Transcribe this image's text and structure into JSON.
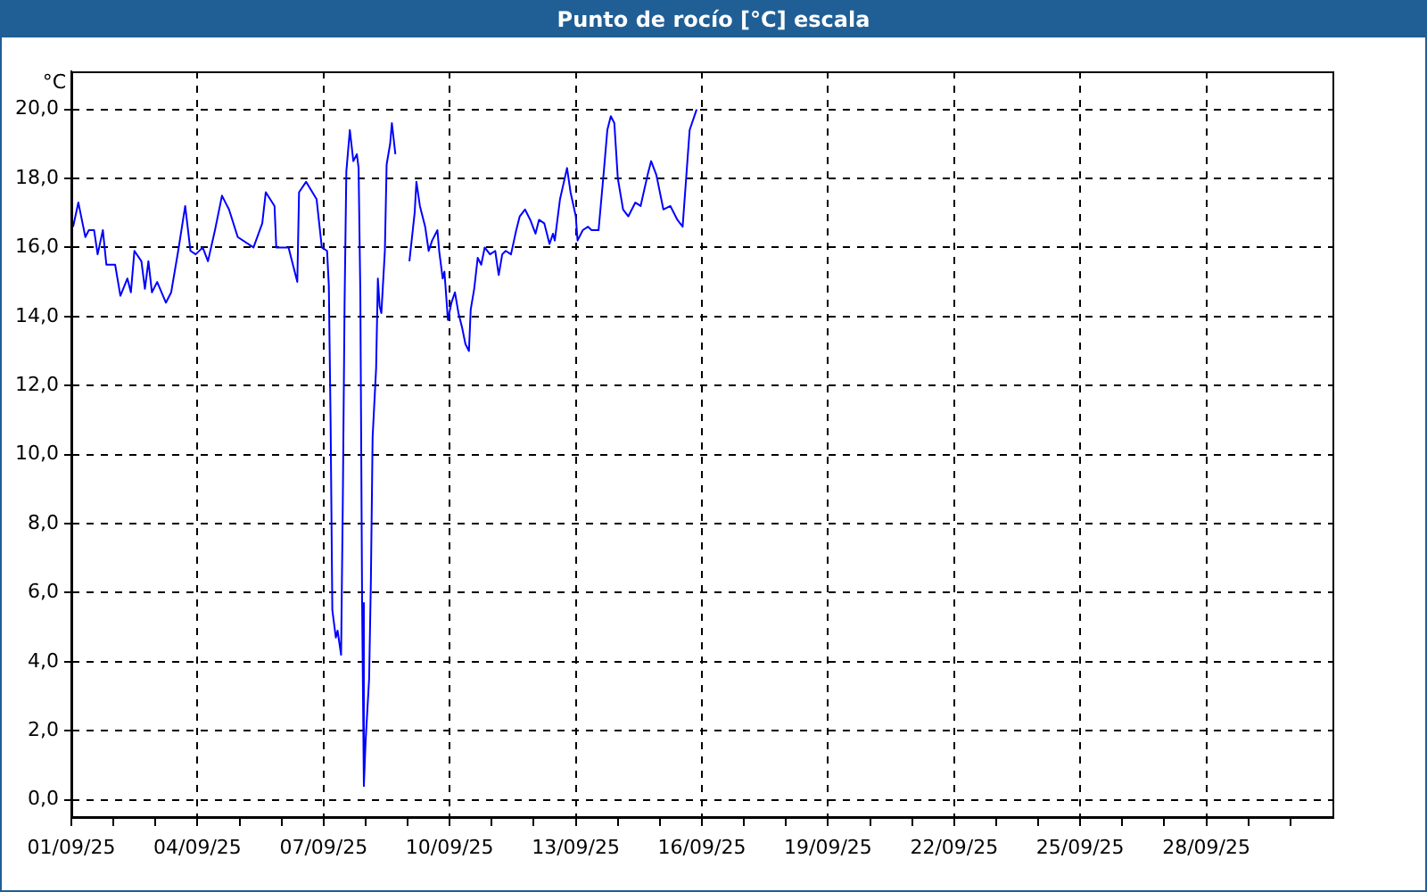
{
  "chart_data": {
    "type": "line",
    "title": "Punto de rocío [°C] escala",
    "ylabel": "°C",
    "xlim": [
      "--09-01",
      "--10-01"
    ],
    "xticks": [
      {
        "value": "--09-01",
        "label": "01/09/25"
      },
      {
        "value": "--09-02",
        "label": null
      },
      {
        "value": "--09-03",
        "label": null
      },
      {
        "value": "--09-04",
        "label": "04/09/25"
      },
      {
        "value": "--09-05",
        "label": null
      },
      {
        "value": "--09-06",
        "label": null
      },
      {
        "value": "--09-07",
        "label": "07/09/25"
      },
      {
        "value": "--09-08",
        "label": null
      },
      {
        "value": "--09-09",
        "label": null
      },
      {
        "value": "--09-10",
        "label": "10/09/25"
      },
      {
        "value": "--09-11",
        "label": null
      },
      {
        "value": "--09-12",
        "label": null
      },
      {
        "value": "--09-13",
        "label": "13/09/25"
      },
      {
        "value": "--09-14",
        "label": null
      },
      {
        "value": "--09-15",
        "label": null
      },
      {
        "value": "--09-16",
        "label": "16/09/25"
      },
      {
        "value": "--09-17",
        "label": null
      },
      {
        "value": "--09-18",
        "label": null
      },
      {
        "value": "--09-19",
        "label": "19/09/25"
      },
      {
        "value": "--09-20",
        "label": null
      },
      {
        "value": "--09-21",
        "label": null
      },
      {
        "value": "--09-22",
        "label": "22/09/25"
      },
      {
        "value": "--09-23",
        "label": null
      },
      {
        "value": "--09-24",
        "label": null
      },
      {
        "value": "--09-25",
        "label": "25/09/25"
      },
      {
        "value": "--09-26",
        "label": null
      },
      {
        "value": "--09-27",
        "label": null
      },
      {
        "value": "--09-28",
        "label": "28/09/25"
      },
      {
        "value": "--09-29",
        "label": null
      },
      {
        "value": "--09-30",
        "label": null
      }
    ],
    "ylim": [
      -0.5,
      21.1
    ],
    "yticks": [
      {
        "value": 0,
        "label": "0,0"
      },
      {
        "value": 2,
        "label": "2,0"
      },
      {
        "value": 4,
        "label": "4,0"
      },
      {
        "value": 6,
        "label": "6,0"
      },
      {
        "value": 8,
        "label": "8,0"
      },
      {
        "value": 10,
        "label": "10,0"
      },
      {
        "value": 12,
        "label": "12,0"
      },
      {
        "value": 14,
        "label": "14,0"
      },
      {
        "value": 16,
        "label": "16,0"
      },
      {
        "value": 18,
        "label": "18,0"
      },
      {
        "value": 20,
        "label": "20,0"
      }
    ],
    "grid": true,
    "legend": false,
    "marker": "none",
    "line_style": "solid",
    "x": [
      "--09-01T01:00",
      "--09-01T04:00",
      "--09-01T08:00",
      "--09-01T10:00",
      "--09-01T13:00",
      "--09-01T15:00",
      "--09-01T18:00",
      "--09-01T20:00",
      "--09-02T01:00",
      "--09-02T04:00",
      "--09-02T08:00",
      "--09-02T10:00",
      "--09-02T12:00",
      "--09-02T16:00",
      "--09-02T18:00",
      "--09-02T20:00",
      "--09-02T22:00",
      "--09-03T01:00",
      "--09-03T06:00",
      "--09-03T09:00",
      "--09-03T13:00",
      "--09-03T17:00",
      "--09-03T20:00",
      "--09-03T23:00",
      "--09-04T03:00",
      "--09-04T06:00",
      "--09-04T10:00",
      "--09-04T14:00",
      "--09-04T18:00",
      "--09-04T23:00",
      "--09-05T08:00",
      "--09-05T13:00",
      "--09-05T15:00",
      "--09-05T20:00",
      "--09-05T21:00",
      "--09-06T04:00",
      "--09-06T09:00",
      "--09-06T10:00",
      "--09-06T14:00",
      "--09-06T20:00",
      "--09-06T23:00",
      "--09-07T02:00",
      "--09-07T03:00",
      "--09-07T04:00",
      "--09-07T05:00",
      "--09-07T07:00",
      "--09-07T08:00",
      "--09-07T10:00",
      "--09-07T11:00",
      "--09-07T12:00",
      "--09-07T13:00",
      "--09-07T15:00",
      "--09-07T17:00",
      "--09-07T19:00",
      "--09-07T20:00",
      "--09-07T21:00",
      "--09-07T22:00",
      "--09-07T23:00",
      "--09-08T00:00",
      "--09-08T02:00",
      "--09-08T03:00",
      "--09-08T04:00",
      "--09-08T06:00",
      "--09-08T07:00",
      "--09-08T08:00",
      "--09-08T09:00",
      "--09-08T11:00",
      "--09-08T12:00",
      "--09-08T14:00",
      "--09-08T15:00",
      "--09-08T17:00",
      "--09-08T20:00",
      "--09-09T01:00",
      "--09-09T04:00",
      "--09-09T05:00",
      "--09-09T07:00",
      "--09-09T10:00",
      "--09-09T12:00",
      "--09-09T14:00",
      "--09-09T17:00",
      "--09-09T18:00",
      "--09-09T20:00",
      "--09-09T21:00",
      "--09-09T23:00",
      "--09-10T01:00",
      "--09-10T03:00",
      "--09-10T05:00",
      "--09-10T07:00",
      "--09-10T09:00",
      "--09-10T11:00",
      "--09-10T12:00",
      "--09-10T14:00",
      "--09-10T16:00",
      "--09-10T18:00",
      "--09-10T20:00",
      "--09-10T23:00",
      "--09-11T02:00",
      "--09-11T04:00",
      "--09-11T06:00",
      "--09-11T08:00",
      "--09-11T11:00",
      "--09-11T14:00",
      "--09-11T16:00",
      "--09-11T19:00",
      "--09-11T22:00",
      "--09-12T01:00",
      "--09-12T03:00",
      "--09-12T06:00",
      "--09-12T09:00",
      "--09-12T11:00",
      "--09-12T12:00",
      "--09-12T15:00",
      "--09-12T19:00",
      "--09-12T21:00",
      "--09-13T00:00",
      "--09-13T01:00",
      "--09-13T04:00",
      "--09-13T07:00",
      "--09-13T09:00",
      "--09-13T13:00",
      "--09-13T16:00",
      "--09-13T18:00",
      "--09-13T20:00",
      "--09-13T22:00",
      "--09-14T00:00",
      "--09-14T03:00",
      "--09-14T06:00",
      "--09-14T10:00",
      "--09-14T13:00",
      "--09-14T17:00",
      "--09-14T19:00",
      "--09-14T22:00",
      "--09-15T02:00",
      "--09-15T06:00",
      "--09-15T10:00",
      "--09-15T13:00",
      "--09-15T15:00",
      "--09-15T17:00",
      "--09-15T21:00"
    ],
    "series": [
      {
        "color": "#0000ff",
        "values": [
          16.6,
          17.3,
          16.3,
          16.5,
          16.5,
          15.8,
          16.5,
          15.5,
          15.5,
          14.6,
          15.1,
          14.7,
          15.9,
          15.6,
          14.8,
          15.6,
          14.7,
          15.0,
          14.4,
          14.7,
          15.9,
          17.2,
          15.9,
          15.8,
          16.0,
          15.6,
          16.5,
          17.5,
          17.1,
          16.3,
          16.0,
          16.7,
          17.6,
          17.2,
          16.0,
          16.0,
          15.0,
          17.6,
          17.9,
          17.4,
          16.0,
          15.9,
          14.9,
          11.0,
          5.5,
          4.7,
          4.9,
          4.2,
          8.7,
          14.4,
          18.2,
          19.4,
          18.5,
          18.7,
          18.3,
          14.6,
          5.7,
          0.4,
          1.7,
          3.5,
          6.3,
          10.5,
          12.5,
          15.1,
          14.3,
          14.1,
          15.9,
          18.4,
          19.0,
          19.6,
          18.7,
          null,
          15.6,
          17.0,
          17.9,
          17.2,
          16.6,
          15.9,
          16.2,
          16.5,
          15.9,
          15.1,
          15.3,
          13.9,
          14.4,
          14.7,
          14.1,
          13.7,
          13.2,
          13.0,
          14.2,
          14.8,
          15.7,
          15.5,
          16.0,
          15.8,
          15.9,
          15.2,
          15.8,
          15.9,
          15.8,
          16.5,
          16.9,
          17.1,
          16.8,
          16.4,
          16.8,
          16.7,
          16.1,
          16.4,
          16.2,
          17.4,
          18.3,
          17.6,
          16.9,
          16.2,
          16.5,
          16.6,
          16.5,
          16.5,
          18.2,
          19.4,
          19.8,
          19.6,
          18.0,
          17.1,
          16.9,
          17.3,
          17.2,
          18.1,
          18.5,
          18.1,
          17.1,
          17.2,
          16.8,
          16.6,
          18.0,
          19.4,
          20.0
        ]
      }
    ]
  }
}
